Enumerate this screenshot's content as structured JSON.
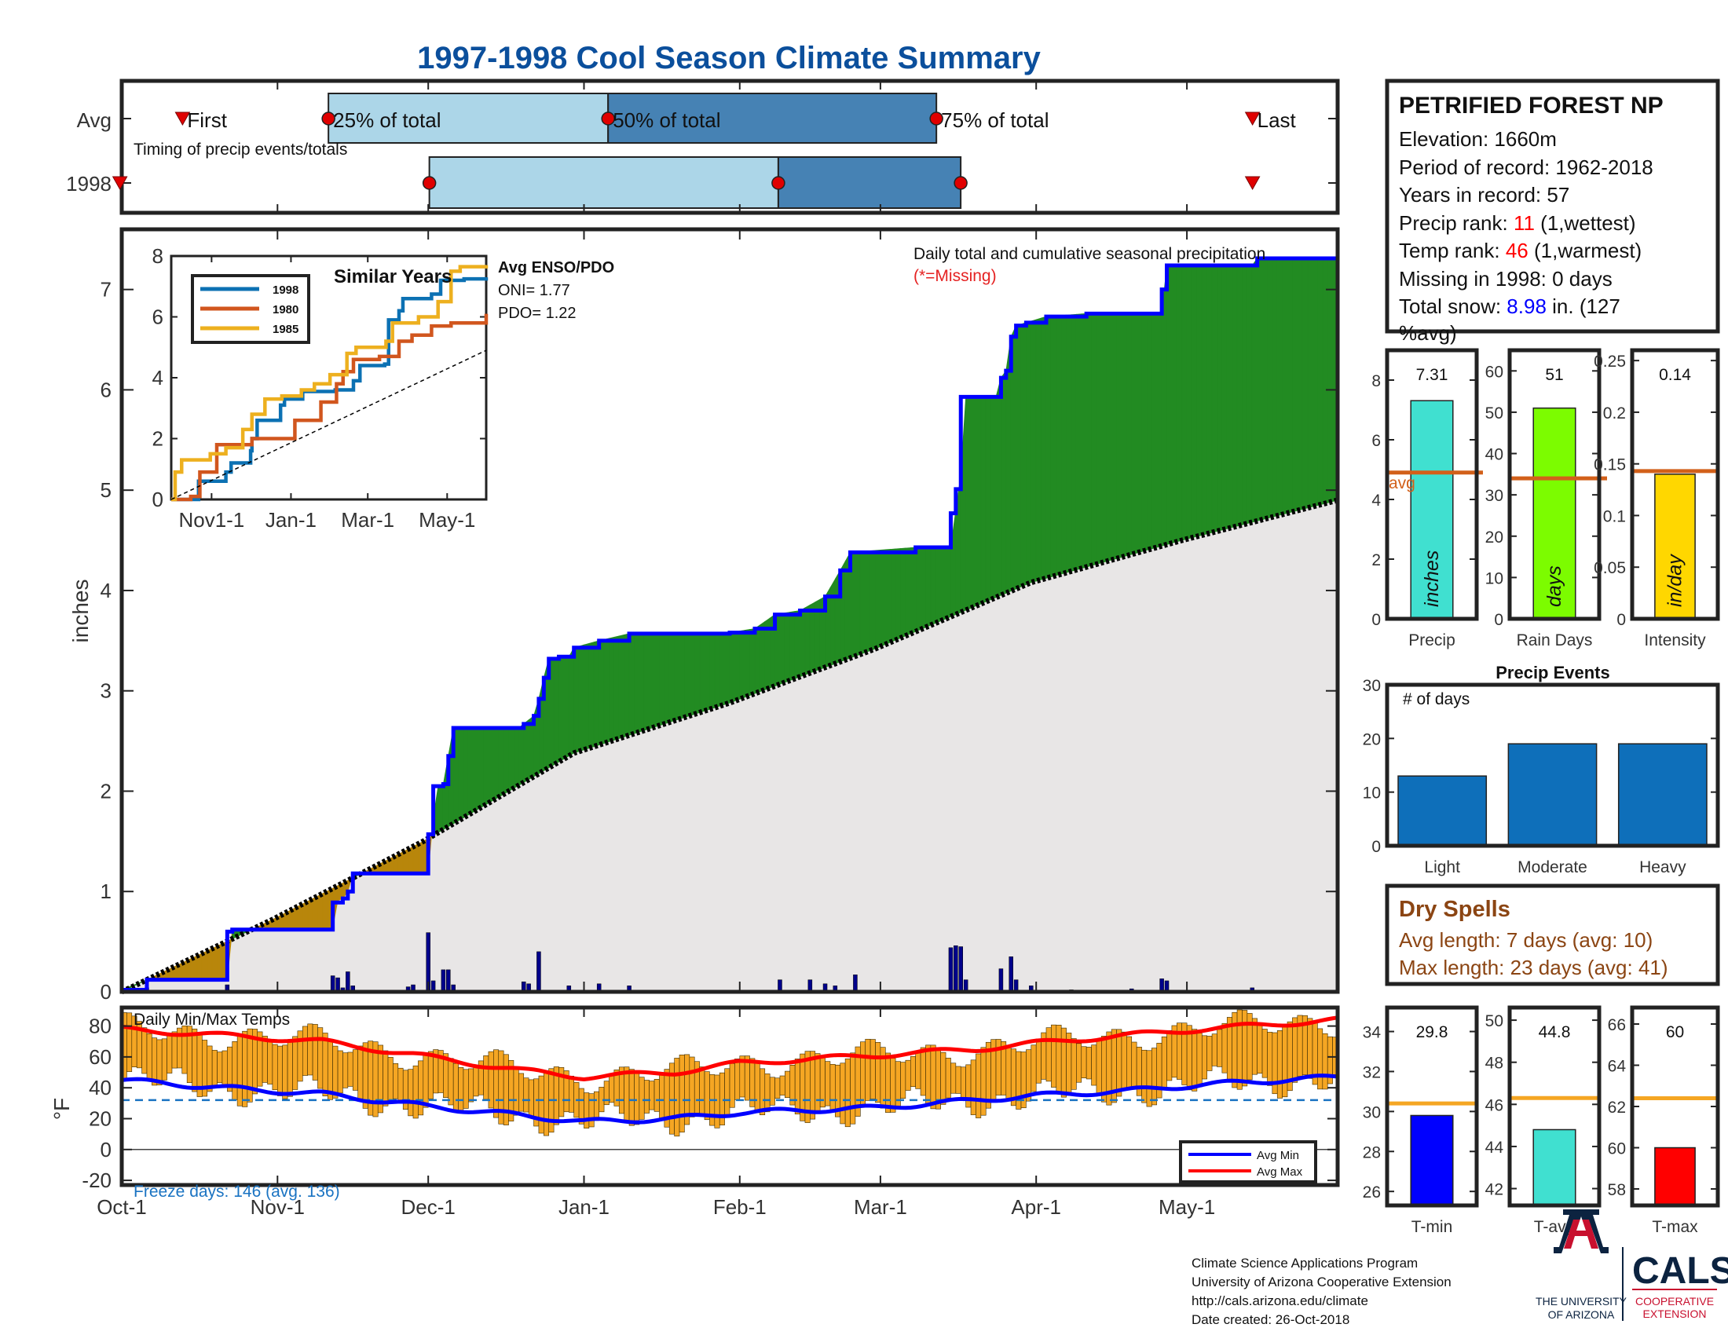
{
  "title": "1997-1998 Cool Season Climate Summary",
  "timing": {
    "row_labels": [
      "Avg",
      "1998"
    ],
    "caption": "Timing of precip events/totals",
    "avg_labels": {
      "first": "First",
      "p25": "25% of total",
      "p50": "50% of total",
      "p75": "75% of total",
      "last": "Last"
    },
    "avg_fractions": {
      "first": 0.05,
      "p25": 0.17,
      "p50": 0.4,
      "p75": 0.67,
      "last": 0.93
    },
    "yr_fractions": {
      "first": -0.0015,
      "p25": 0.253,
      "p50": 0.54,
      "p75": 0.69,
      "last": 0.93
    }
  },
  "station": {
    "name": "PETRIFIED FOREST NP",
    "elevation_label": "Elevation: 1660m",
    "period_label": "Period of record: 1962-2018",
    "years_label": "Years in record: 57",
    "precip_rank_prefix": "Precip rank: ",
    "precip_rank": "11",
    "precip_rank_suffix": " (1,wettest)",
    "temp_rank_prefix": "Temp rank: ",
    "temp_rank": "46",
    "temp_rank_suffix": " (1,warmest)",
    "missing_label": "Missing in 1998: 0 days",
    "snow_prefix": "Total snow: ",
    "snow_value": "8.98",
    "snow_suffix": " in. (127",
    "snow_suffix2": "%avg)"
  },
  "main_chart": {
    "annotation": "Daily total and cumulative seasonal precipitation",
    "missing_note": "(*=Missing)",
    "ylabel": "inches",
    "yticks": [
      "0",
      "1",
      "2",
      "3",
      "4",
      "5",
      "6",
      "7"
    ],
    "ylim": [
      0,
      7.6
    ],
    "xticks": [
      "Oct-1",
      "Nov-1",
      "Dec-1",
      "Jan-1",
      "Feb-1",
      "Mar-1",
      "Apr-1",
      "May-1"
    ],
    "xtick_days": [
      0,
      31,
      61,
      92,
      123,
      151,
      182,
      212
    ],
    "season_days": 242
  },
  "chart_data": [
    {
      "type": "area",
      "name": "cumulative precipitation",
      "ylabel": "inches",
      "ylim": [
        0,
        7.6
      ],
      "series": [
        {
          "name": "1998 cumulative",
          "points": [
            [
              0,
              0.02
            ],
            [
              5,
              0.12
            ],
            [
              21,
              0.12
            ],
            [
              21,
              0.6
            ],
            [
              22,
              0.62
            ],
            [
              42,
              0.64
            ],
            [
              42,
              0.89
            ],
            [
              44,
              0.93
            ],
            [
              45,
              1.0
            ],
            [
              46,
              1.18
            ],
            [
              61,
              1.2
            ],
            [
              61,
              1.57
            ],
            [
              62,
              1.73
            ],
            [
              62,
              2.05
            ],
            [
              64,
              2.07
            ],
            [
              65,
              2.35
            ],
            [
              66,
              2.63
            ],
            [
              79,
              2.63
            ],
            [
              80,
              2.67
            ],
            [
              82,
              2.75
            ],
            [
              83,
              2.92
            ],
            [
              84,
              3.13
            ],
            [
              85,
              3.32
            ],
            [
              87,
              3.34
            ],
            [
              89,
              3.34
            ],
            [
              90,
              3.43
            ],
            [
              95,
              3.5
            ],
            [
              101,
              3.57
            ],
            [
              121,
              3.58
            ],
            [
              126,
              3.62
            ],
            [
              130,
              3.76
            ],
            [
              135,
              3.8
            ],
            [
              140,
              3.94
            ],
            [
              143,
              4.2
            ],
            [
              145,
              4.38
            ],
            [
              158,
              4.43
            ],
            [
              165,
              4.43
            ],
            [
              165,
              4.77
            ],
            [
              166,
              4.8
            ],
            [
              166,
              5.01
            ],
            [
              167,
              5.15
            ],
            [
              167,
              5.48
            ],
            [
              167,
              5.93
            ],
            [
              174,
              5.93
            ],
            [
              175,
              6.12
            ],
            [
              176,
              6.19
            ],
            [
              177,
              6.53
            ],
            [
              178,
              6.64
            ],
            [
              180,
              6.67
            ],
            [
              184,
              6.73
            ],
            [
              192,
              6.76
            ],
            [
              207,
              6.76
            ],
            [
              207,
              7.0
            ],
            [
              208,
              7.24
            ],
            [
              216,
              7.24
            ],
            [
              225,
              7.24
            ],
            [
              226,
              7.31
            ],
            [
              242,
              7.31
            ]
          ]
        },
        {
          "name": "Average cumulative",
          "points": [
            [
              0,
              0
            ],
            [
              30,
              0.72
            ],
            [
              60,
              1.5
            ],
            [
              90,
              2.38
            ],
            [
              121,
              2.88
            ],
            [
              150,
              3.42
            ],
            [
              181,
              4.08
            ],
            [
              211,
              4.5
            ],
            [
              242,
              4.9
            ]
          ]
        }
      ]
    },
    {
      "type": "bar",
      "name": "daily precipitation",
      "ylabel": "inches",
      "x": [
        5,
        21,
        42,
        43,
        44,
        45,
        46,
        57,
        58,
        61,
        62,
        64,
        65,
        66,
        80,
        81,
        83,
        89,
        95,
        101,
        131,
        137,
        140,
        142,
        146,
        165,
        166,
        167,
        168,
        175,
        177,
        178,
        181,
        189,
        201,
        207,
        208,
        225
      ],
      "values": [
        0.04,
        0.07,
        0.16,
        0.14,
        0.04,
        0.2,
        0.06,
        0.05,
        0.07,
        0.59,
        0.11,
        0.22,
        0.22,
        0.07,
        0.1,
        0.08,
        0.4,
        0.06,
        0.08,
        0.06,
        0.12,
        0.12,
        0.08,
        0.06,
        0.17,
        0.44,
        0.46,
        0.45,
        0.12,
        0.23,
        0.35,
        0.12,
        0.06,
        0.02,
        0.03,
        0.13,
        0.11,
        0.04
      ]
    },
    {
      "type": "line",
      "name": "similar years",
      "title": "Similar Years",
      "xticks": [
        "Nov1-1",
        "Jan-1",
        "Mar-1",
        "May-1"
      ],
      "yticks": [
        "0",
        "2",
        "4",
        "6",
        "8"
      ],
      "ylim": [
        0,
        8
      ],
      "series": [
        {
          "name": "1998",
          "color": "#0c71b3",
          "points": [
            [
              0,
              0
            ],
            [
              20,
              0
            ],
            [
              21,
              0.6
            ],
            [
              42,
              0.9
            ],
            [
              46,
              1.2
            ],
            [
              61,
              1.6
            ],
            [
              62,
              2.0
            ],
            [
              66,
              2.6
            ],
            [
              79,
              2.6
            ],
            [
              84,
              3.1
            ],
            [
              87,
              3.3
            ],
            [
              101,
              3.55
            ],
            [
              126,
              3.6
            ],
            [
              140,
              3.9
            ],
            [
              145,
              4.4
            ],
            [
              164,
              4.45
            ],
            [
              167,
              5.9
            ],
            [
              175,
              6.2
            ],
            [
              178,
              6.6
            ],
            [
              200,
              6.75
            ],
            [
              207,
              7.2
            ],
            [
              225,
              7.25
            ],
            [
              242,
              7.3
            ]
          ]
        },
        {
          "name": "1980",
          "color": "#d1561e",
          "points": [
            [
              0,
              0
            ],
            [
              15,
              0.1
            ],
            [
              22,
              0.9
            ],
            [
              35,
              1.8
            ],
            [
              55,
              1.8
            ],
            [
              62,
              2.0
            ],
            [
              80,
              2.0
            ],
            [
              95,
              2.6
            ],
            [
              115,
              3.2
            ],
            [
              127,
              3.8
            ],
            [
              132,
              4.2
            ],
            [
              140,
              4.6
            ],
            [
              160,
              4.7
            ],
            [
              175,
              5.2
            ],
            [
              185,
              5.4
            ],
            [
              200,
              5.7
            ],
            [
              215,
              5.8
            ],
            [
              242,
              6.1
            ]
          ]
        },
        {
          "name": "1985",
          "color": "#edb01f",
          "points": [
            [
              0,
              0
            ],
            [
              3,
              0.9
            ],
            [
              8,
              1.3
            ],
            [
              30,
              1.5
            ],
            [
              42,
              1.7
            ],
            [
              55,
              2.3
            ],
            [
              62,
              2.8
            ],
            [
              72,
              3.3
            ],
            [
              85,
              3.4
            ],
            [
              100,
              3.6
            ],
            [
              110,
              3.8
            ],
            [
              122,
              4.1
            ],
            [
              135,
              4.8
            ],
            [
              142,
              5.0
            ],
            [
              165,
              5.2
            ],
            [
              170,
              5.8
            ],
            [
              190,
              6.0
            ],
            [
              205,
              6.5
            ],
            [
              215,
              7.5
            ],
            [
              222,
              7.65
            ],
            [
              242,
              7.7
            ]
          ]
        },
        {
          "name": "Average",
          "points": [
            [
              0,
              0
            ],
            [
              242,
              4.9
            ]
          ]
        }
      ]
    },
    {
      "type": "bar",
      "name": "Precip",
      "value": 7.31,
      "avg": 4.9,
      "ylim": [
        0,
        9
      ],
      "color": "#40e0d0"
    },
    {
      "type": "bar",
      "name": "Rain Days",
      "value": 51,
      "avg": 34,
      "ylim": [
        0,
        65
      ],
      "color": "#7cfc00"
    },
    {
      "type": "bar",
      "name": "Intensity",
      "value": 0.14,
      "avg": 0.143,
      "ylim": [
        0,
        0.26
      ],
      "color": "#ffd700"
    },
    {
      "type": "bar",
      "name": "Precip Events",
      "title": "Precip Events",
      "ylabel": "# of days",
      "categories": [
        "Light",
        "Moderate",
        "Heavy"
      ],
      "values": [
        13,
        19,
        19
      ],
      "ylim": [
        0,
        30
      ]
    },
    {
      "type": "bar",
      "name": "Daily Min/Max Temps",
      "ylabel": "°F",
      "ylim": [
        -23,
        92
      ],
      "freeze_line": 32,
      "avg_min": [
        [
          0,
          45
        ],
        [
          20,
          40
        ],
        [
          40,
          36
        ],
        [
          61,
          28
        ],
        [
          80,
          22
        ],
        [
          92,
          18
        ],
        [
          110,
          20
        ],
        [
          123,
          24
        ],
        [
          150,
          27
        ],
        [
          170,
          32
        ],
        [
          182,
          35
        ],
        [
          200,
          38
        ],
        [
          215,
          42
        ],
        [
          242,
          47
        ]
      ],
      "avg_max": [
        [
          0,
          78
        ],
        [
          20,
          74
        ],
        [
          40,
          70
        ],
        [
          61,
          60
        ],
        [
          80,
          51
        ],
        [
          92,
          47
        ],
        [
          110,
          50
        ],
        [
          123,
          56
        ],
        [
          150,
          61
        ],
        [
          170,
          65
        ],
        [
          182,
          69
        ],
        [
          200,
          74
        ],
        [
          215,
          78
        ],
        [
          242,
          84
        ]
      ]
    },
    {
      "type": "bar",
      "name": "T-min",
      "value": 29.8,
      "avg": 30.4,
      "ylim": [
        25.3,
        35.2
      ],
      "color": "#0000ff"
    },
    {
      "type": "bar",
      "name": "T-avg",
      "value": 44.8,
      "avg": 46.3,
      "ylim": [
        41.2,
        50.6
      ],
      "color": "#40e0d0"
    },
    {
      "type": "bar",
      "name": "T-max",
      "value": 60,
      "avg": 62.4,
      "ylim": [
        57.2,
        66.8
      ],
      "color": "#ff0000"
    }
  ],
  "inset": {
    "title": "Similar Years",
    "legend": [
      "1998",
      "1980",
      "1985"
    ],
    "enso_title": "Avg ENSO/PDO",
    "oni_label": "ONI= 1.77",
    "pdo_label": "PDO= 1.22",
    "xticks": [
      "Nov1-1",
      "Jan-1",
      "Mar-1",
      "May-1"
    ],
    "yticks": [
      "0",
      "2",
      "4",
      "6",
      "8"
    ]
  },
  "bars": {
    "precip": {
      "label": "Precip",
      "value_label": "7.31",
      "unit": "inches",
      "avg_label": "avg",
      "yticks": [
        "0",
        "2",
        "4",
        "6",
        "8"
      ]
    },
    "raindays": {
      "label": "Rain Days",
      "value_label": "51",
      "unit": "days",
      "yticks": [
        "0",
        "10",
        "20",
        "30",
        "40",
        "50",
        "60"
      ]
    },
    "intensity": {
      "label": "Intensity",
      "value_label": "0.14",
      "unit": "in/day",
      "yticks": [
        "0",
        "0.05",
        "0.1",
        "0.15",
        "0.2",
        "0.25"
      ]
    }
  },
  "events": {
    "title": "Precip Events",
    "ylabel": "# of days",
    "yticks": [
      "0",
      "10",
      "20",
      "30"
    ],
    "categories": [
      "Light",
      "Moderate",
      "Heavy"
    ]
  },
  "dry_spells": {
    "title": "Dry Spells",
    "avg_length": "Avg length: 7 days (avg: 10)",
    "max_length": "Max length: 23 days (avg: 41)"
  },
  "temps": {
    "title": "Daily Min/Max Temps",
    "ylabel": "°F",
    "yticks": [
      "-20",
      "0",
      "20",
      "40",
      "60",
      "80"
    ],
    "freeze_label": "Freeze days: 146 (avg. 136)",
    "legend": [
      "Avg Min",
      "Avg Max"
    ],
    "colors": {
      "bar": "#f5a623",
      "avg_min": "#0000ff",
      "avg_max": "#ff0000",
      "freeze": "#1a73c2"
    }
  },
  "temp_bars": {
    "tmin": {
      "label": "T-min",
      "value_label": "29.8",
      "yticks": [
        "26",
        "28",
        "30",
        "32",
        "34"
      ]
    },
    "tavg": {
      "label": "T-avg",
      "value_label": "44.8",
      "yticks": [
        "42",
        "44",
        "46",
        "48",
        "50"
      ]
    },
    "tmax": {
      "label": "T-max",
      "value_label": "60",
      "yticks": [
        "58",
        "60",
        "62",
        "64",
        "66"
      ]
    }
  },
  "footer": {
    "line1": "Climate Science Applications Program",
    "line2": "University of Arizona Cooperative Extension",
    "line3": "http://cals.arizona.edu/climate",
    "line4": " Date created: 26-Oct-2018"
  },
  "logos": {
    "ua_line1": "THE UNIVERSITY",
    "ua_line2": "OF ARIZONA",
    "cals": "CALS",
    "cals_line1": "COOPERATIVE",
    "cals_line2": "EXTENSION"
  },
  "colors": {
    "title": "#0b4f9c",
    "surplus": "#228b22",
    "deficit": "#b8860b",
    "normal_fill": "#e8e6e6",
    "cumulative_line": "#0000ff",
    "daily_bar": "#00008b",
    "avg_line": "#d2601a",
    "box_light": "#acd6e8",
    "box_dark": "#4682b4",
    "rank": "#ff0000",
    "snow": "#0000ff",
    "dry_spell": "#8b4513",
    "event_bar": "#0e6fba"
  }
}
